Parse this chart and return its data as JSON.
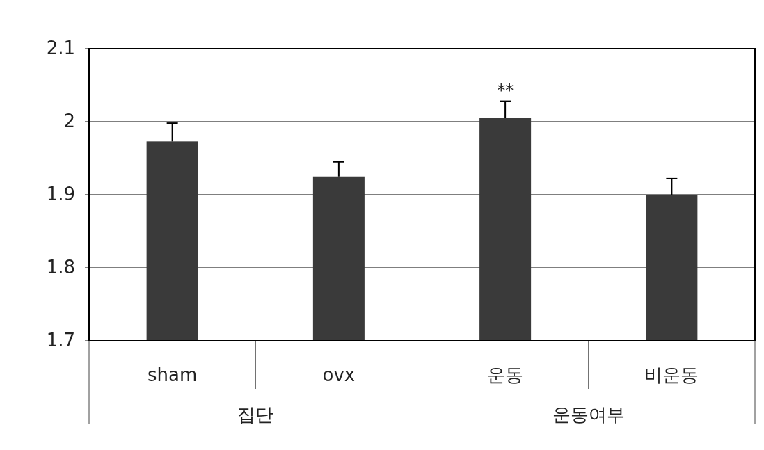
{
  "chart_data": {
    "type": "bar",
    "categories": [
      "sham",
      "ovx",
      "운동",
      "비운동"
    ],
    "values": [
      1.973,
      1.925,
      2.005,
      1.9
    ],
    "errors": [
      [
        1.973,
        1.998
      ],
      [
        1.925,
        1.945
      ],
      [
        2.005,
        2.028
      ],
      [
        1.9,
        1.922
      ]
    ],
    "color": "#3a3a3a",
    "ylim": [
      1.7,
      2.1
    ],
    "yticks": [
      1.7,
      1.8,
      1.9,
      2,
      2.1
    ],
    "grid": "y",
    "annotations": [
      {
        "text": "**",
        "x": "운동",
        "y": 2.028
      },
      "집단",
      "운동여부"
    ]
  }
}
